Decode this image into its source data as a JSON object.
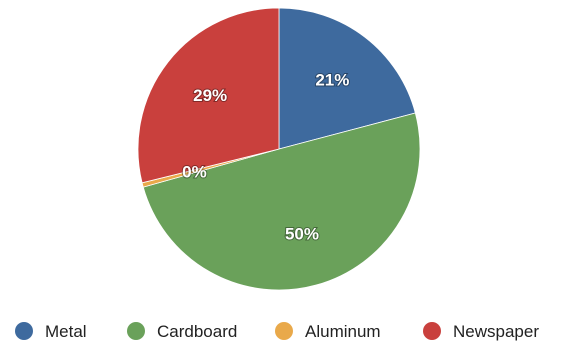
{
  "chart_data": {
    "type": "pie",
    "categories": [
      "Metal",
      "Cardboard",
      "Aluminum",
      "Newspaper"
    ],
    "values": [
      21,
      50,
      0.5,
      29
    ],
    "labels": [
      "21%",
      "50%",
      "0%",
      "29%"
    ],
    "colors": [
      "#3e6a9e",
      "#6aa15a",
      "#e9a94a",
      "#c9403d"
    ],
    "legend_position": "bottom"
  }
}
